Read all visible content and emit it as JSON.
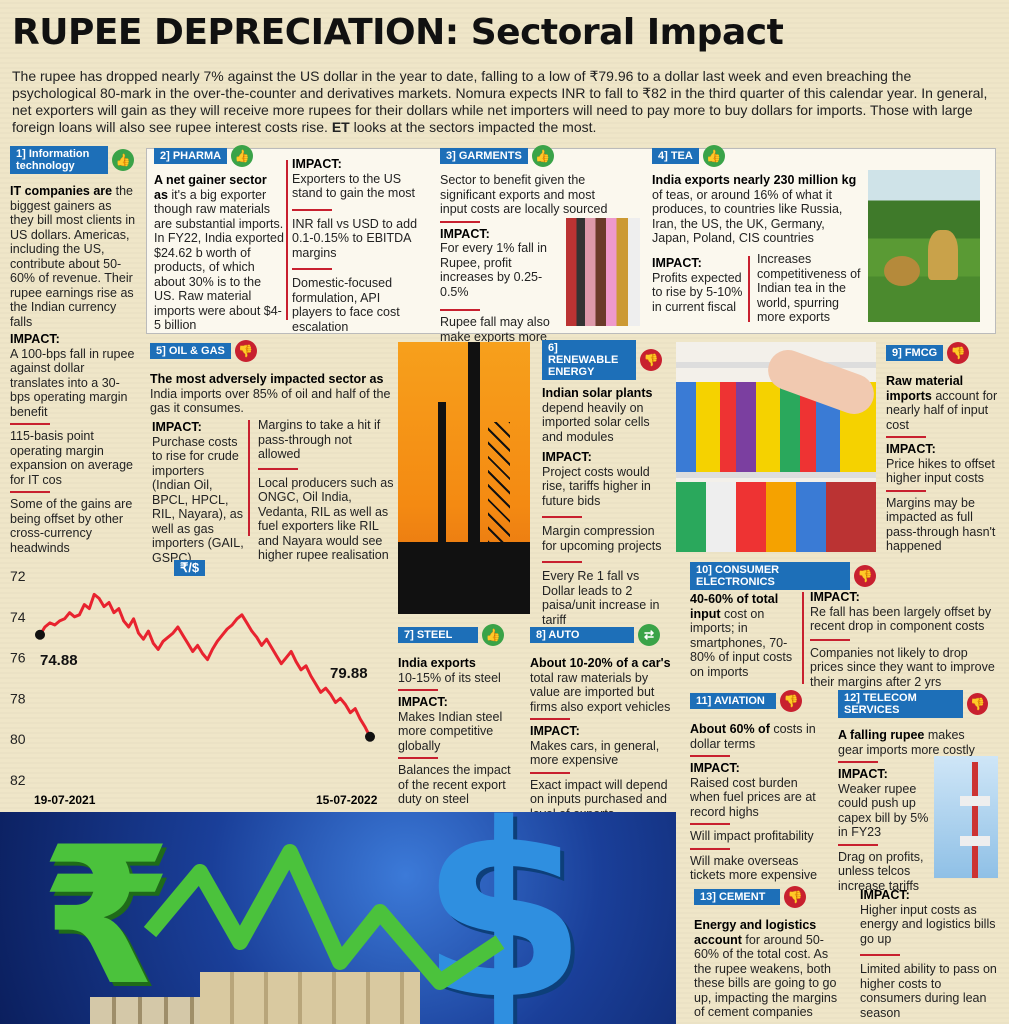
{
  "title": "RUPEE DEPRECIATION: Sectoral Impact",
  "intro": "The rupee has dropped nearly 7% against the US dollar in the year to date, falling to a low of ₹79.96 to a dollar last week and even breaching the psychological 80-mark in the over-the-counter and derivatives markets. Nomura expects INR to fall to ₹82 in the third quarter of this calendar year. In general, net exporters will gain as they will receive more rupees for their dollars while net importers will need to pay more to buy dollars for imports. Those with large foreign loans will also see rupee interest costs rise.",
  "intro_et": "ET",
  "intro_end": "looks at the sectors impacted the most.",
  "sectors": {
    "it": {
      "tag": "1] Information technology",
      "lead_bold": "IT companies are",
      "lead": "the biggest gainers as they bill most clients in US dollars. Americas, including the US, contribute about 50-60% of revenue. Their rupee earnings rise as the Indian currency falls",
      "impact_label": "IMPACT:",
      "impact": "A 100-bps fall in rupee against dollar translates into a 30-bps operating margin benefit",
      "p2": "115-basis point operating margin expansion on average for IT cos",
      "p3": "Some of the gains are being offset by other cross-currency headwinds"
    },
    "pharma": {
      "tag": "2] PHARMA",
      "lead_bold": "A net gainer sector as",
      "lead": "it's a big exporter though raw materials are substantial imports. In FY22, India exported $24.62 b worth of products, of which about 30% is to the US. Raw material imports were about $4-5 billion",
      "impact_label": "IMPACT:",
      "impact": "Exporters to the US stand to gain the most",
      "p2": "INR fall vs USD to add 0.1-0.15% to EBITDA margins",
      "p3": "Domestic-focused formulation, API players to face cost escalation"
    },
    "garments": {
      "tag": "3] GARMENTS",
      "lead": "Sector to benefit given the significant exports and most input costs are locally sourced",
      "impact_label": "IMPACT:",
      "impact": "For every 1% fall in Rupee, profit increases by 0.25-0.5%",
      "p2": "Rupee fall may also make exports more competitive"
    },
    "tea": {
      "tag": "4] TEA",
      "lead_bold": "India exports nearly 230 million kg",
      "lead": "of teas, or around 16% of what it produces, to countries like Russia, Iran, the US, the UK, Germany, Japan, Poland, CIS countries",
      "impact_label": "IMPACT:",
      "impact": "Profits expected to rise by 5-10% in current fiscal",
      "p2": "Increases competitiveness of Indian tea in the world, spurring more exports"
    },
    "oil": {
      "tag": "5] OIL & GAS",
      "lead_bold": "The most adversely impacted sector as",
      "lead": "India imports over 85% of oil and half of the gas it consumes.",
      "impact_label": "IMPACT:",
      "impact": "Purchase costs to rise for crude importers (Indian Oil, BPCL, HPCL, RIL, Nayara), as well as gas importers (GAIL, GSPC)",
      "p2": "Margins to take a hit if pass-through not allowed",
      "p3": "Local producers such as ONGC, Oil India, Vedanta, RIL as well as fuel exporters like RIL and Nayara would see higher rupee realisation"
    },
    "renewable": {
      "tag": "6] RENEWABLE ENERGY",
      "lead_bold": "Indian solar plants",
      "lead": "depend heavily on imported solar cells and modules",
      "impact_label": "IMPACT:",
      "impact": "Project costs would rise, tariffs higher in future bids",
      "p2": "Margin compression for upcoming projects",
      "p3": "Every Re 1 fall vs Dollar leads to 2 paisa/unit increase in tariff"
    },
    "fmcg": {
      "tag": "9] FMCG",
      "lead_bold": "Raw material imports",
      "lead": "account for nearly half of input cost",
      "impact_label": "IMPACT:",
      "impact": "Price hikes to offset higher input costs",
      "p2": "Margins may be impacted as full pass-through hasn't happened"
    },
    "consumer": {
      "tag": "10] CONSUMER ELECTRONICS",
      "lead_bold": "40-60% of total input",
      "lead": "cost on imports; in smartphones, 70-80% of input costs on imports",
      "impact_label": "IMPACT:",
      "impact": "Re fall has been largely offset by recent drop in component costs",
      "p2": "Companies not likely to drop prices since they want to improve their margins after 2 yrs"
    },
    "steel": {
      "tag": "7] STEEL",
      "lead_bold": "India exports",
      "lead": "10-15% of its steel",
      "impact_label": "IMPACT:",
      "impact": "Makes Indian steel more competitive globally",
      "p2": "Balances the impact of the recent export duty on steel"
    },
    "auto": {
      "tag": "8] AUTO",
      "lead_bold": "About 10-20% of a car's",
      "lead": "total raw materials by value are imported but firms also export vehicles",
      "impact_label": "IMPACT:",
      "impact": "Makes cars, in general, more expensive",
      "p2": "Exact impact will depend on inputs purchased and level of exports"
    },
    "aviation": {
      "tag": "11] AVIATION",
      "lead_bold": "About 60% of",
      "lead": "costs in dollar terms",
      "impact_label": "IMPACT:",
      "impact": "Raised cost burden when fuel prices are at record highs",
      "p2": "Will impact profitability",
      "p3": "Will make overseas tickets more expensive"
    },
    "telecom": {
      "tag": "12] TELECOM SERVICES",
      "lead_bold": "A falling rupee",
      "lead": "makes gear imports more costly",
      "impact_label": "IMPACT:",
      "impact": "Weaker rupee could push up capex bill by 5% in FY23",
      "p2": "Drag on profits, unless telcos increase tariffs"
    },
    "cement": {
      "tag": "13] CEMENT",
      "lead_bold": "Energy and logistics account",
      "lead": "for around 50-60% of the total cost. As the rupee weakens, both these bills are going to go up, impacting the margins of cement companies",
      "impact_label": "IMPACT:",
      "impact": "Higher input costs as energy and logistics bills go up",
      "p2": "Limited ability to pass on higher costs to consumers during lean season"
    }
  },
  "chart_data": {
    "type": "line",
    "title": "₹/$",
    "x_start": "19-07-2021",
    "x_end": "15-07-2022",
    "y_ticks": [
      72,
      74,
      76,
      78,
      80,
      82
    ],
    "ylim": [
      72,
      82
    ],
    "y_inverted": true,
    "start_value": 74.88,
    "end_value": 79.88,
    "start_label": "74.88",
    "end_label": "79.88",
    "values": [
      74.88,
      74.5,
      74.3,
      74.4,
      74.2,
      74.1,
      73.8,
      74.0,
      73.9,
      73.4,
      73.6,
      72.9,
      73.1,
      73.5,
      73.3,
      73.8,
      73.6,
      74.2,
      74.5,
      74.1,
      74.8,
      75.1,
      74.7,
      75.3,
      75.6,
      75.2,
      75.0,
      74.8,
      74.5,
      74.9,
      75.3,
      75.7,
      75.4,
      75.8,
      76.1,
      75.6,
      75.2,
      74.9,
      74.6,
      74.4,
      74.1,
      73.9,
      74.3,
      74.7,
      75.0,
      75.4,
      75.1,
      75.5,
      75.9,
      76.3,
      76.0,
      75.7,
      76.2,
      76.6,
      76.4,
      76.9,
      77.3,
      77.7,
      77.5,
      77.8,
      78.2,
      78.0,
      78.3,
      78.7,
      78.5,
      79.0,
      79.4,
      79.88
    ],
    "line_color": "#e8232f"
  },
  "colors": {
    "tag_blue": "#1d6fb8",
    "up_green": "#3aa348",
    "down_red": "#c8202f"
  }
}
